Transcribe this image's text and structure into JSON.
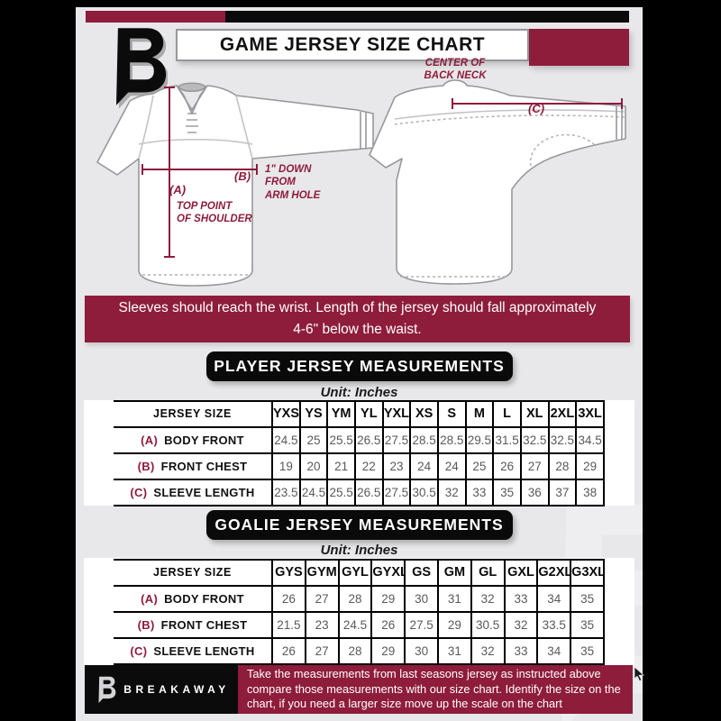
{
  "header": {
    "title": "GAME JERSEY SIZE CHART"
  },
  "banner": {
    "text": "Sleeves should reach the wrist. Length of the jersey should fall approximately 4-6\" below the waist."
  },
  "diagram": {
    "front": {
      "a_key": "(A)",
      "a_caption": "TOP POINT\nOF SHOULDER",
      "b_key": "(B)",
      "b_caption": "1\" DOWN\nFROM\nARM HOLE"
    },
    "back": {
      "c_key": "(C)",
      "c_caption": "CENTER OF\nBACK NECK"
    }
  },
  "player_table": {
    "title": "PLAYER JERSEY MEASUREMENTS",
    "unit": "Unit: Inches",
    "header": [
      "JERSEY SIZE",
      "YXS",
      "YS",
      "YM",
      "YL",
      "YXL",
      "XS",
      "S",
      "M",
      "L",
      "XL",
      "2XL",
      "3XL"
    ],
    "rows": [
      {
        "key": "(A)",
        "label": "BODY FRONT",
        "values": [
          "24.5",
          "25",
          "25.5",
          "26.5",
          "27.5",
          "28.5",
          "28.5",
          "29.5",
          "31.5",
          "32.5",
          "32.5",
          "34.5"
        ]
      },
      {
        "key": "(B)",
        "label": "FRONT CHEST",
        "values": [
          "19",
          "20",
          "21",
          "22",
          "23",
          "24",
          "24",
          "25",
          "26",
          "27",
          "28",
          "29"
        ]
      },
      {
        "key": "(C)",
        "label": "SLEEVE LENGTH",
        "values": [
          "23.5",
          "24.5",
          "25.5",
          "26.5",
          "27.5",
          "30.5",
          "32",
          "33",
          "35",
          "36",
          "37",
          "38"
        ]
      }
    ]
  },
  "goalie_table": {
    "title": "GOALIE JERSEY MEASUREMENTS",
    "unit": "Unit: Inches",
    "header": [
      "JERSEY SIZE",
      "GYS",
      "GYM",
      "GYL",
      "GYXL",
      "GS",
      "GM",
      "GL",
      "GXL",
      "G2XL",
      "G3XL"
    ],
    "rows": [
      {
        "key": "(A)",
        "label": "BODY FRONT",
        "values": [
          "26",
          "27",
          "28",
          "29",
          "30",
          "31",
          "32",
          "33",
          "34",
          "35"
        ]
      },
      {
        "key": "(B)",
        "label": "FRONT CHEST",
        "values": [
          "21.5",
          "23",
          "24.5",
          "26",
          "27.5",
          "29",
          "30.5",
          "32",
          "33.5",
          "35"
        ]
      },
      {
        "key": "(C)",
        "label": "SLEEVE LENGTH",
        "values": [
          "26",
          "27",
          "28",
          "29",
          "30",
          "31",
          "32",
          "33",
          "34",
          "35"
        ]
      }
    ]
  },
  "footer": {
    "brand": "BREAKAWAY",
    "text": "Take the measurements from last seasons jersey as instructed above compare those measurements with our size chart. Identify the size on the chart, if you need a larger size move up the scale on the chart"
  },
  "colors": {
    "maroon": "#8e1c3b",
    "ink": "#0a0a0a",
    "cardbg": "#e8e8ea",
    "value": "#58595b"
  }
}
